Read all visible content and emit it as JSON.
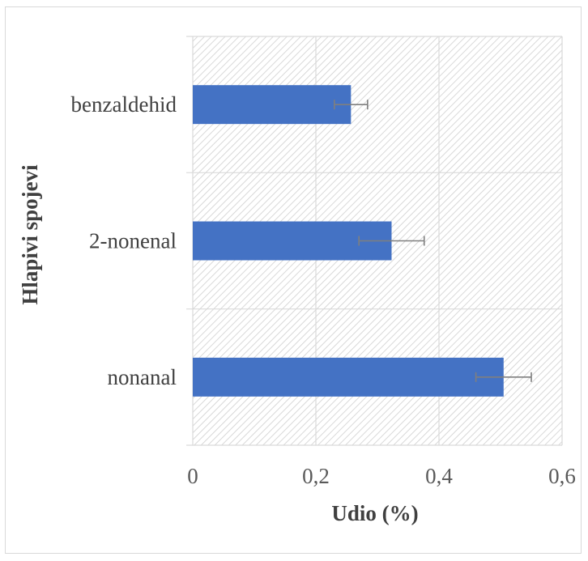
{
  "chart_data": {
    "type": "bar",
    "orientation": "horizontal",
    "categories": [
      "nonanal",
      "2-nonenal",
      "benzaldehid"
    ],
    "values": [
      0.505,
      0.323,
      0.257
    ],
    "errors": [
      0.045,
      0.053,
      0.027
    ],
    "xlabel": "Udio (%)",
    "ylabel": "Hlapivi spojevi",
    "xlim": [
      0,
      0.6
    ],
    "xticks": [
      "0",
      "0,2",
      "0,4",
      "0,6"
    ],
    "xtick_values": [
      0,
      0.2,
      0.4,
      0.6
    ],
    "grid": true,
    "legend": "none",
    "colors": {
      "bar": "#4472c4",
      "grid": "#d9d9d9",
      "error_bar": "#7f7f7f",
      "hatch": "#cfcfcf"
    }
  }
}
